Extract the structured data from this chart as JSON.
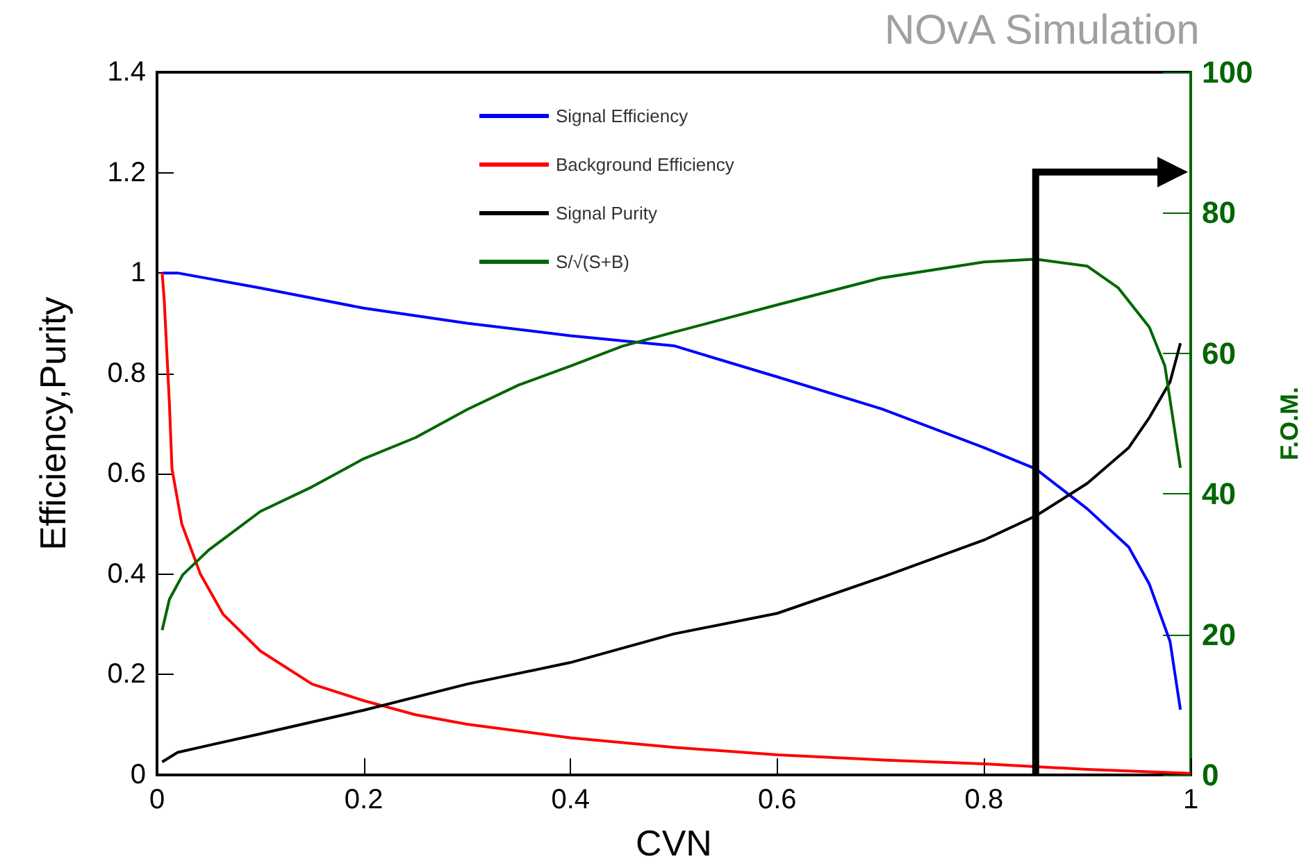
{
  "chart_data": {
    "type": "line",
    "title": "NOvA Simulation",
    "xlabel": "CVN",
    "ylabel": "Efficiency,Purity",
    "y2label": "F.O.M.",
    "xlim": [
      0,
      1
    ],
    "xticks": [
      0,
      0.2,
      0.4,
      0.6,
      0.8,
      1
    ],
    "ylim": [
      0,
      1.4
    ],
    "yticks": [
      0,
      0.2,
      0.4,
      0.6,
      0.8,
      1,
      1.2,
      1.4
    ],
    "y2lim": [
      0,
      100
    ],
    "y2ticks": [
      0,
      20,
      40,
      60,
      80,
      100
    ],
    "grid": false,
    "legend": "top",
    "marker": "none",
    "line_style": "solid",
    "ref_lines": [
      {
        "axis": "x",
        "value": 0.85,
        "color": "#000000"
      }
    ],
    "series": [
      {
        "name": "Signal Efficiency",
        "color": "#0000ff",
        "x": [
          0.005,
          0.02,
          0.1,
          0.2,
          0.3,
          0.4,
          0.5,
          0.6,
          0.7,
          0.8,
          0.85,
          0.9,
          0.94,
          0.96,
          0.98,
          0.99
        ],
        "values": [
          1.0,
          1.0,
          0.97,
          0.93,
          0.9,
          0.875,
          0.855,
          0.793,
          0.73,
          0.652,
          0.61,
          0.53,
          0.454,
          0.38,
          0.266,
          0.13
        ]
      },
      {
        "name": "Background Efficiency",
        "color": "#ff0000",
        "x": [
          0.005,
          0.007,
          0.012,
          0.0145,
          0.024,
          0.042,
          0.064,
          0.1,
          0.15,
          0.2,
          0.25,
          0.3,
          0.4,
          0.5,
          0.6,
          0.7,
          0.8,
          0.9,
          1.0
        ],
        "values": [
          1.0,
          0.945,
          0.74,
          0.61,
          0.5,
          0.4,
          0.32,
          0.247,
          0.181,
          0.148,
          0.12,
          0.101,
          0.074,
          0.055,
          0.04,
          0.03,
          0.022,
          0.011,
          0.003
        ]
      },
      {
        "name": "Signal Purity",
        "color": "#000000",
        "x": [
          0.005,
          0.02,
          0.05,
          0.1,
          0.2,
          0.3,
          0.4,
          0.5,
          0.6,
          0.7,
          0.8,
          0.85,
          0.9,
          0.94,
          0.96,
          0.98,
          0.99
        ],
        "values": [
          0.026,
          0.045,
          0.059,
          0.082,
          0.129,
          0.181,
          0.224,
          0.281,
          0.322,
          0.393,
          0.468,
          0.516,
          0.581,
          0.652,
          0.712,
          0.783,
          0.86
        ]
      },
      {
        "name": "S/√(S+B)",
        "color": "#006600",
        "axis": "y2",
        "x": [
          0.005,
          0.012,
          0.025,
          0.05,
          0.1,
          0.15,
          0.2,
          0.25,
          0.3,
          0.35,
          0.4,
          0.45,
          0.5,
          0.6,
          0.7,
          0.8,
          0.85,
          0.9,
          0.93,
          0.96,
          0.975,
          0.99
        ],
        "values": [
          20.6,
          25,
          28.5,
          32,
          37.5,
          41,
          45,
          48,
          52,
          55.5,
          58.2,
          61,
          63,
          66.9,
          70.7,
          73,
          73.4,
          72.4,
          69.3,
          63.7,
          58.2,
          43.7
        ]
      }
    ]
  }
}
